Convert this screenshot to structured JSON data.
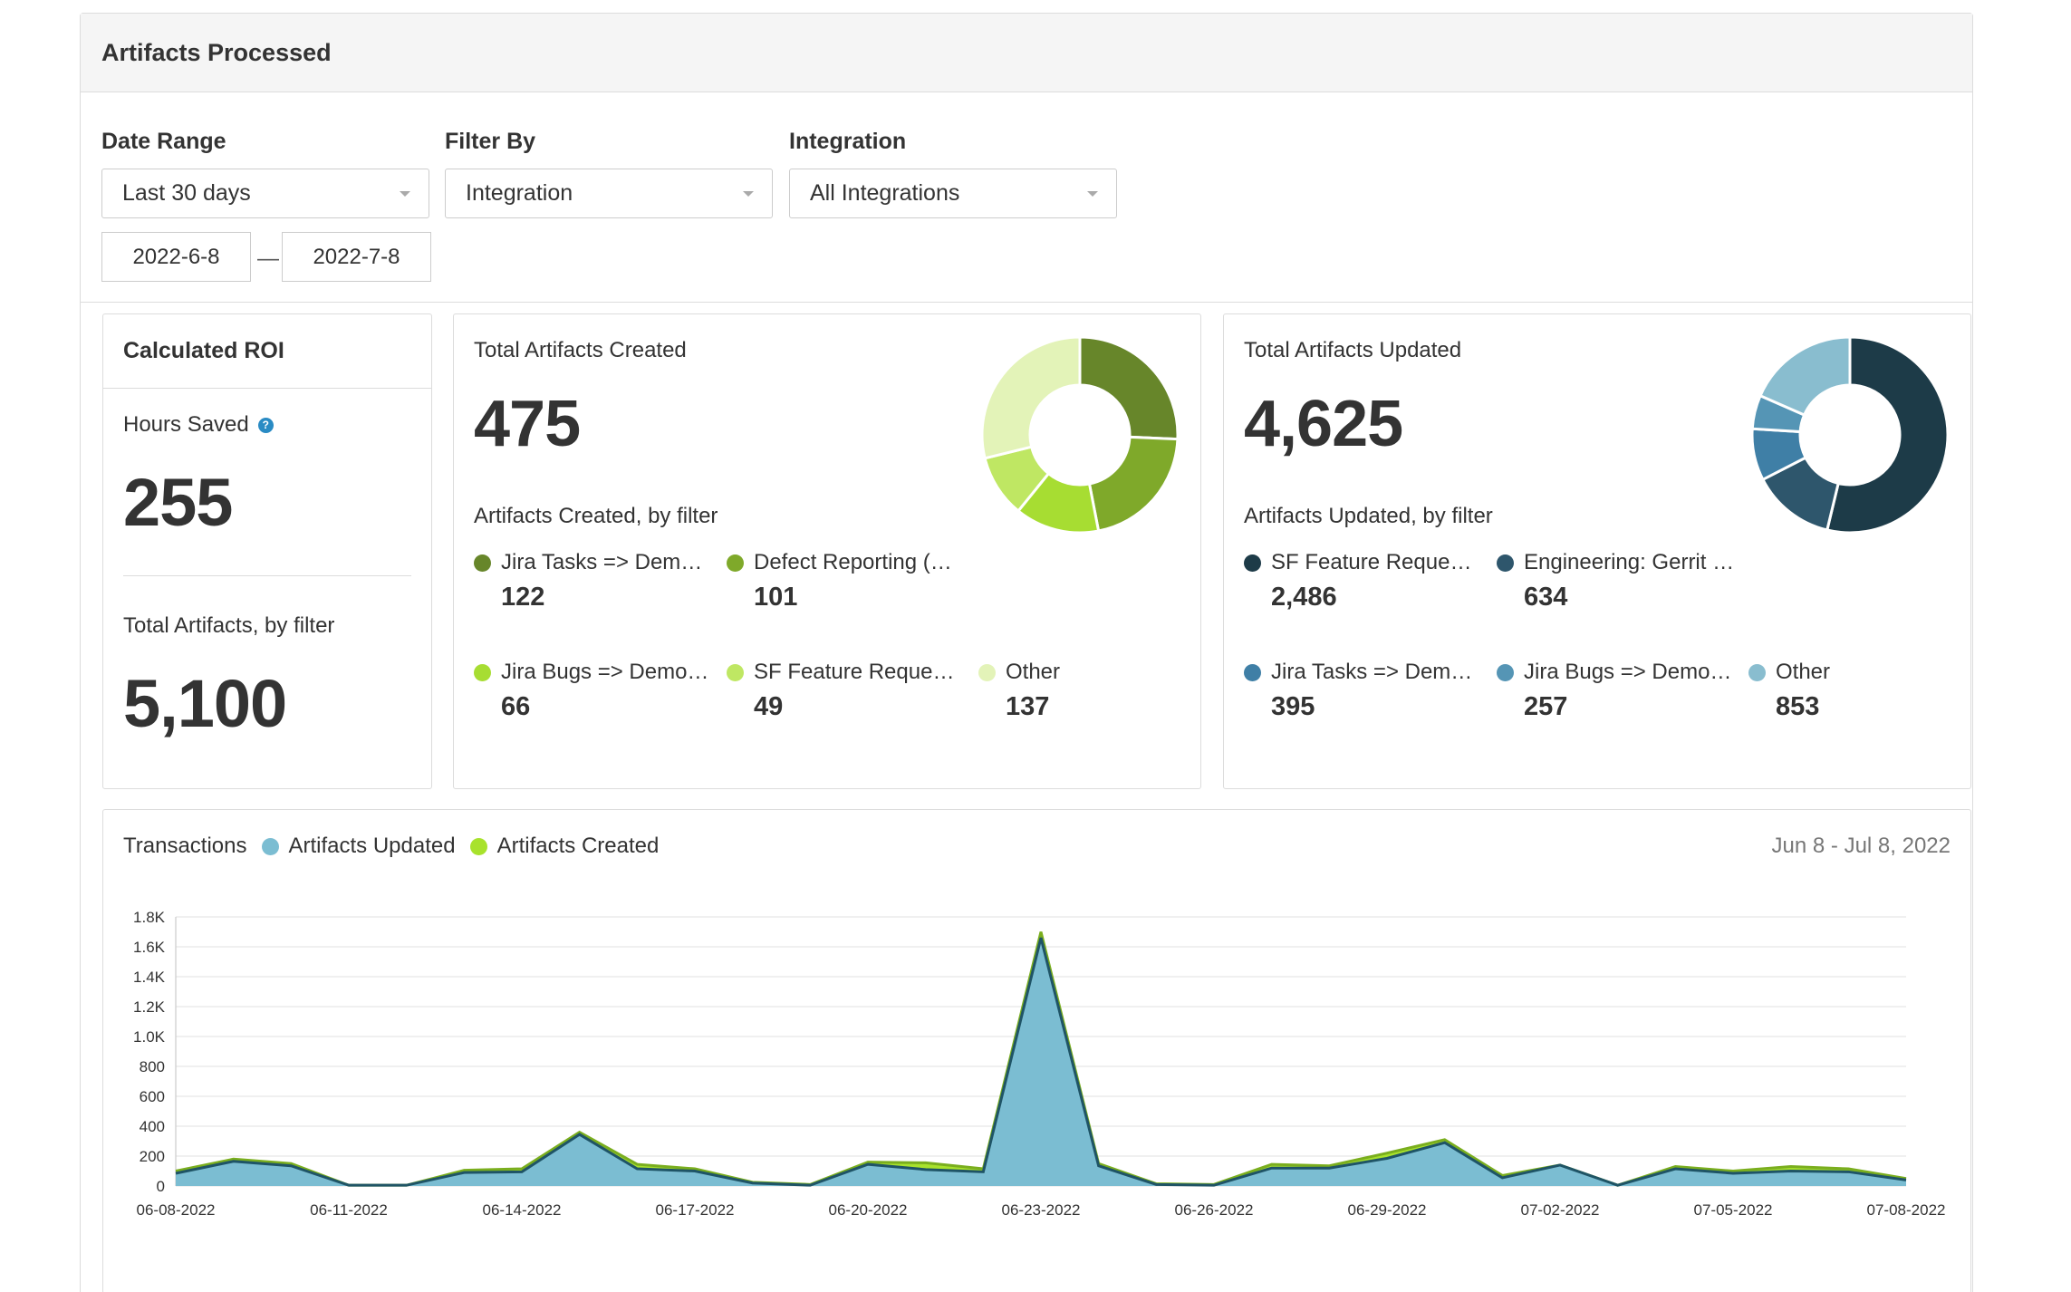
{
  "panel": {
    "title": "Artifacts Processed"
  },
  "filters": {
    "date_range": {
      "label": "Date Range",
      "value": "Last 30 days"
    },
    "filter_by": {
      "label": "Filter By",
      "value": "Integration"
    },
    "integration": {
      "label": "Integration",
      "value": "All Integrations"
    },
    "start_date": "2022-6-8",
    "separator": "—",
    "end_date": "2022-7-8"
  },
  "roi": {
    "title": "Calculated ROI",
    "hours_label": "Hours Saved",
    "help_glyph": "?",
    "hours_value": "255",
    "total_label": "Total Artifacts, by filter",
    "total_value": "5,100"
  },
  "created": {
    "title": "Total Artifacts Created",
    "total": "475",
    "subtitle": "Artifacts Created, by filter",
    "items": [
      {
        "label": "Jira Tasks => Dem…",
        "value": "122",
        "color": "#67862a",
        "num": 122
      },
      {
        "label": "Defect Reporting (…",
        "value": "101",
        "color": "#7fa92a",
        "num": 101
      },
      {
        "label": "Jira Bugs => Demo…",
        "value": "66",
        "color": "#a7dd32",
        "num": 66
      },
      {
        "label": "SF Feature Reque…",
        "value": "49",
        "color": "#bfe763",
        "num": 49
      },
      {
        "label": "Other",
        "value": "137",
        "color": "#e3f3b8",
        "num": 137
      }
    ]
  },
  "updated": {
    "title": "Total Artifacts Updated",
    "total": "4,625",
    "subtitle": "Artifacts Updated, by filter",
    "items": [
      {
        "label": "SF Feature Reque…",
        "value": "2,486",
        "color": "#1d3b48",
        "num": 2486
      },
      {
        "label": "Engineering: Gerrit …",
        "value": "634",
        "color": "#2e566c",
        "num": 634
      },
      {
        "label": "Jira Tasks => Dem…",
        "value": "395",
        "color": "#3f7fa6",
        "num": 395
      },
      {
        "label": "Jira Bugs => Demo…",
        "value": "257",
        "color": "#5595b5",
        "num": 257
      },
      {
        "label": "Other",
        "value": "853",
        "color": "#89bdcf",
        "num": 853
      }
    ]
  },
  "transactions": {
    "title": "Transactions",
    "legend_updated": "Artifacts Updated",
    "legend_created": "Artifacts Created",
    "range": "Jun 8 - Jul 8, 2022"
  },
  "chart_data": {
    "type": "area",
    "x": [
      "06-08-2022",
      "06-09-2022",
      "06-10-2022",
      "06-11-2022",
      "06-12-2022",
      "06-13-2022",
      "06-14-2022",
      "06-15-2022",
      "06-16-2022",
      "06-17-2022",
      "06-18-2022",
      "06-19-2022",
      "06-20-2022",
      "06-21-2022",
      "06-22-2022",
      "06-23-2022",
      "06-24-2022",
      "06-25-2022",
      "06-26-2022",
      "06-27-2022",
      "06-28-2022",
      "06-29-2022",
      "06-30-2022",
      "07-01-2022",
      "07-02-2022",
      "07-03-2022",
      "07-04-2022",
      "07-05-2022",
      "07-06-2022",
      "07-07-2022",
      "07-08-2022"
    ],
    "xticks": [
      "06-08-2022",
      "06-11-2022",
      "06-14-2022",
      "06-17-2022",
      "06-20-2022",
      "06-23-2022",
      "06-26-2022",
      "06-29-2022",
      "07-02-2022",
      "07-05-2022",
      "07-08-2022"
    ],
    "yticks": [
      "0",
      "200",
      "400",
      "600",
      "800",
      "1.0K",
      "1.2K",
      "1.4K",
      "1.6K",
      "1.8K"
    ],
    "ylim": [
      0,
      1800
    ],
    "series": [
      {
        "name": "Artifacts Updated",
        "color": "#7bbdd2",
        "line": "#1f5466",
        "values": [
          85,
          165,
          135,
          5,
          5,
          90,
          95,
          345,
          115,
          100,
          20,
          5,
          145,
          110,
          95,
          1660,
          135,
          10,
          5,
          120,
          120,
          185,
          290,
          55,
          140,
          5,
          115,
          85,
          100,
          95,
          40
        ]
      },
      {
        "name": "Artifacts Created",
        "color": "#a8e22c",
        "line": "#7aae1e",
        "values": [
          15,
          15,
          15,
          0,
          0,
          15,
          20,
          15,
          30,
          15,
          5,
          5,
          15,
          45,
          20,
          40,
          15,
          5,
          5,
          25,
          15,
          35,
          20,
          15,
          0,
          0,
          15,
          15,
          30,
          20,
          10
        ]
      }
    ],
    "grid": true,
    "legend": "top-left"
  }
}
